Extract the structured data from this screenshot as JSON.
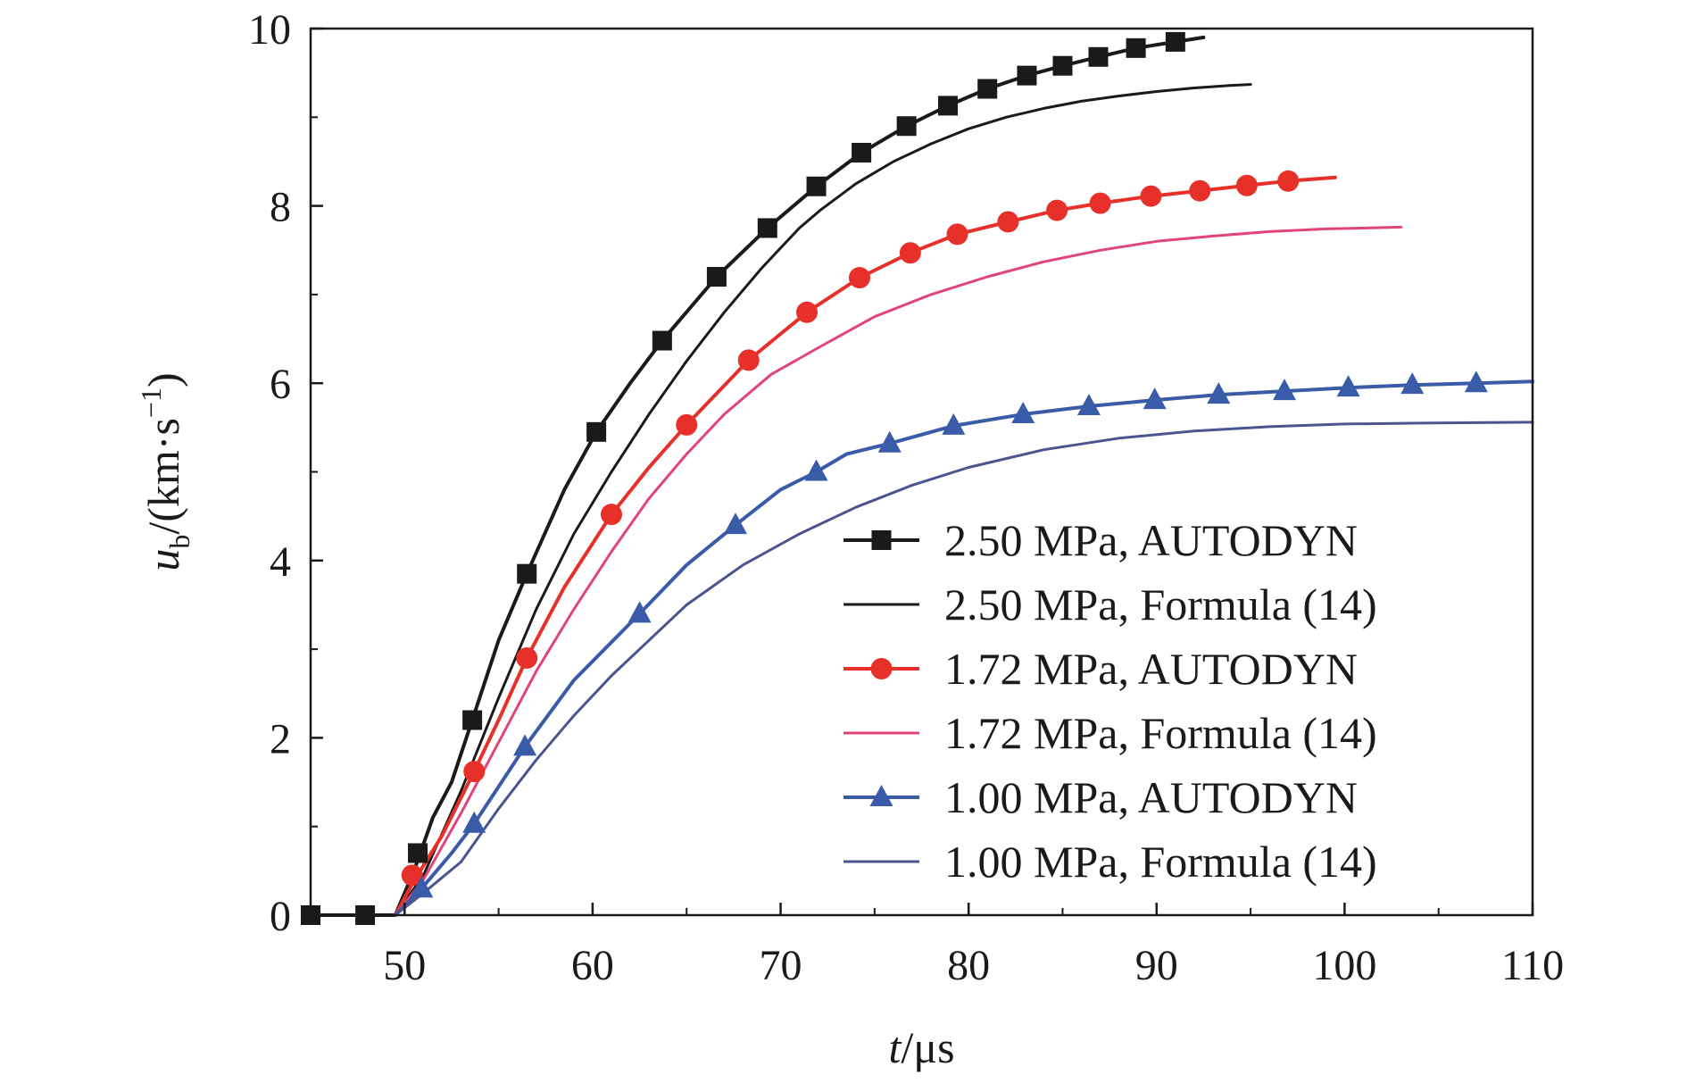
{
  "chart_data": {
    "type": "line",
    "title": "",
    "xlabel_var": "t",
    "xlabel_unit": "/μs",
    "ylabel_var": "u",
    "ylabel_sub": "b",
    "ylabel_unit": "/(km·s",
    "ylabel_exp": "−1",
    "ylabel_close": ")",
    "xlim": [
      45,
      110
    ],
    "ylim": [
      0,
      10
    ],
    "xticks": [
      50,
      60,
      70,
      80,
      90,
      100,
      110
    ],
    "yticks": [
      0,
      2,
      4,
      6,
      8,
      10
    ],
    "legend_position": "lower-right",
    "grid": false,
    "series": [
      {
        "name": "2.50 MPa, AUTODYN",
        "color": "#1a1a1a",
        "marker": "square",
        "line_x": [
          45,
          49.5,
          50.5,
          51.5,
          52.5,
          53.6,
          55,
          56.5,
          58.5,
          60.2,
          62,
          63.7,
          66.6,
          69.3,
          71.9,
          74.3,
          76.7,
          78.9,
          81,
          83.1,
          85,
          86.9,
          88.9,
          91,
          92.5
        ],
        "line_y": [
          0,
          0,
          0.5,
          1.1,
          1.5,
          2.2,
          3.1,
          3.85,
          4.8,
          5.45,
          6.0,
          6.48,
          7.2,
          7.75,
          8.22,
          8.6,
          8.9,
          9.13,
          9.32,
          9.47,
          9.58,
          9.68,
          9.78,
          9.85,
          9.9
        ],
        "marker_x": [
          45,
          47.9,
          50.7,
          53.6,
          56.5,
          60.2,
          63.7,
          66.6,
          69.3,
          71.9,
          74.3,
          76.7,
          78.9,
          81,
          83.1,
          85,
          86.9,
          88.9,
          91
        ],
        "marker_y": [
          0,
          0,
          0.7,
          2.2,
          3.85,
          5.45,
          6.48,
          7.2,
          7.75,
          8.22,
          8.6,
          8.9,
          9.13,
          9.32,
          9.47,
          9.58,
          9.68,
          9.78,
          9.85
        ]
      },
      {
        "name": "2.50 MPa, Formula (14)",
        "color": "#1a1a1a",
        "marker": "none",
        "line_x": [
          49.5,
          51,
          53,
          55,
          57,
          59,
          61,
          63,
          65,
          67,
          69,
          71,
          72.1,
          74,
          76,
          78,
          80,
          82,
          84,
          86,
          88,
          90,
          92,
          94,
          95
        ],
        "line_y": [
          0,
          0.45,
          1.4,
          2.45,
          3.45,
          4.3,
          5.0,
          5.65,
          6.25,
          6.8,
          7.3,
          7.75,
          7.95,
          8.25,
          8.5,
          8.7,
          8.87,
          9.0,
          9.1,
          9.18,
          9.24,
          9.29,
          9.33,
          9.36,
          9.37
        ]
      },
      {
        "name": "1.72 MPa, AUTODYN",
        "color": "#e8302a",
        "marker": "circle",
        "line_x": [
          49.5,
          50.4,
          52,
          53.7,
          55,
          56.5,
          58.5,
          61,
          63,
          65,
          68.3,
          71.4,
          74.2,
          76.9,
          79.4,
          82.1,
          84.7,
          87,
          89.7,
          92.3,
          94.8,
          97,
          99.5
        ],
        "line_y": [
          0,
          0.35,
          0.9,
          1.62,
          2.2,
          2.9,
          3.7,
          4.52,
          5.05,
          5.53,
          6.26,
          6.8,
          7.19,
          7.47,
          7.68,
          7.82,
          7.95,
          8.03,
          8.11,
          8.17,
          8.23,
          8.28,
          8.32
        ],
        "marker_x": [
          50.4,
          53.7,
          56.5,
          61,
          65,
          68.3,
          71.4,
          74.2,
          76.9,
          79.4,
          82.1,
          84.7,
          87,
          89.7,
          92.3,
          94.8,
          97
        ],
        "marker_y": [
          0.45,
          1.62,
          2.9,
          4.52,
          5.53,
          6.26,
          6.8,
          7.19,
          7.47,
          7.68,
          7.82,
          7.95,
          8.03,
          8.11,
          8.17,
          8.23,
          8.28
        ]
      },
      {
        "name": "1.72 MPa, Formula (14)",
        "color": "#e0447a",
        "marker": "none",
        "line_x": [
          49.5,
          51,
          53,
          55,
          57,
          59,
          61,
          63,
          65,
          67,
          69.5,
          72,
          75,
          78,
          81,
          84,
          87,
          90,
          93,
          96,
          99,
          103
        ],
        "line_y": [
          0,
          0.4,
          1.15,
          1.95,
          2.75,
          3.45,
          4.1,
          4.7,
          5.2,
          5.65,
          6.1,
          6.4,
          6.75,
          7.0,
          7.2,
          7.37,
          7.5,
          7.6,
          7.66,
          7.71,
          7.74,
          7.76
        ]
      },
      {
        "name": "1.00 MPa, AUTODYN",
        "color": "#3a5ba8",
        "marker": "triangle",
        "line_x": [
          49.5,
          50.9,
          52.5,
          53.7,
          56.4,
          59,
          62.5,
          65,
          67.6,
          70,
          71.9,
          73.5,
          75.8,
          79.2,
          82.9,
          86.4,
          89.9,
          93.3,
          96.8,
          100.2,
          103.6,
          107,
          110
        ],
        "line_y": [
          0,
          0.3,
          0.7,
          1.03,
          1.9,
          2.65,
          3.4,
          3.95,
          4.4,
          4.8,
          5.0,
          5.2,
          5.32,
          5.52,
          5.65,
          5.74,
          5.81,
          5.87,
          5.91,
          5.95,
          5.98,
          6.0,
          6.02
        ],
        "marker_x": [
          50.9,
          53.7,
          56.4,
          62.5,
          67.6,
          71.9,
          75.8,
          79.2,
          82.9,
          86.4,
          89.9,
          93.3,
          96.8,
          100.2,
          103.6,
          107
        ],
        "marker_y": [
          0.3,
          1.03,
          1.9,
          3.4,
          4.4,
          5.0,
          5.32,
          5.52,
          5.65,
          5.74,
          5.81,
          5.87,
          5.91,
          5.95,
          5.98,
          6.0
        ]
      },
      {
        "name": "1.00 MPa, Formula (14)",
        "color": "#4a5590",
        "marker": "none",
        "line_x": [
          49.5,
          51,
          53,
          55,
          57,
          59,
          61,
          63,
          65,
          68,
          71,
          74,
          77,
          80,
          84,
          88,
          92,
          96,
          100,
          104,
          110
        ],
        "line_y": [
          0,
          0.25,
          0.6,
          1.2,
          1.75,
          2.25,
          2.7,
          3.1,
          3.5,
          3.95,
          4.3,
          4.6,
          4.85,
          5.05,
          5.25,
          5.38,
          5.46,
          5.51,
          5.54,
          5.55,
          5.56
        ]
      }
    ]
  }
}
